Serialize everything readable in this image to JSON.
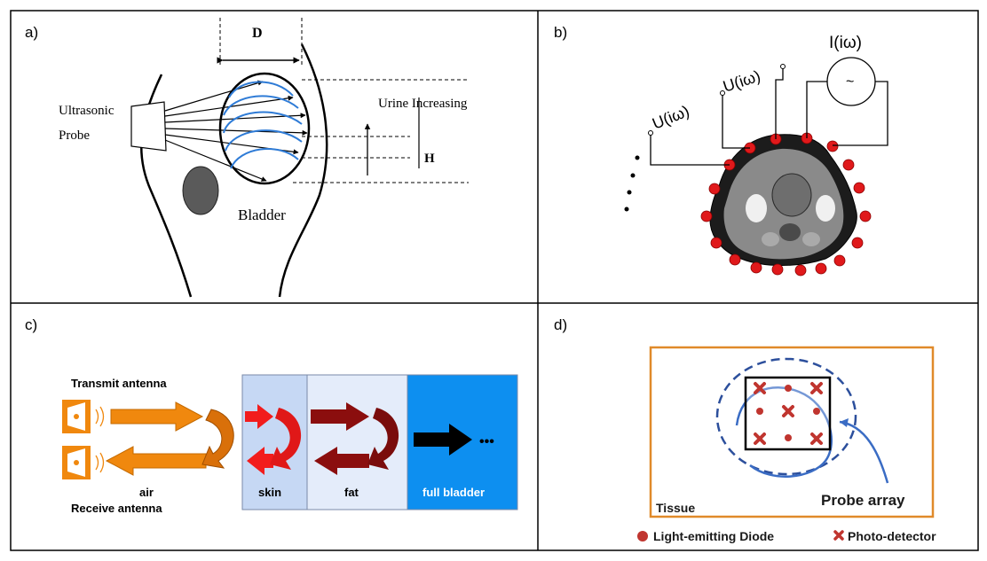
{
  "panels": {
    "a": {
      "label": "a)",
      "dimension_label": "D",
      "probe_label_line1": "Ultrasonic",
      "probe_label_line2": "Probe",
      "urine_label": "Urine Increasing",
      "height_label": "H",
      "bladder_label": "Bladder"
    },
    "b": {
      "label": "b)",
      "current_label": "I(iω)",
      "source_symbol": "~",
      "voltage_label_1": "U(iω)",
      "voltage_label_2": "U(iω)",
      "ellipsis": "..."
    },
    "c": {
      "label": "c)",
      "transmit_label": "Transmit antenna",
      "air_label": "air",
      "receive_label": "Receive antenna",
      "skin_label": "skin",
      "fat_label": "fat",
      "bladder_label": "full bladder",
      "ellipsis": "•••"
    },
    "d": {
      "label": "d)",
      "tissue_label": "Tissue",
      "probe_label": "Probe array",
      "legend_led": "Light-emitting Diode",
      "legend_pd": "Photo-detector"
    }
  },
  "colors": {
    "blue_arc": "#2e7bd6",
    "electrode_red": "#e0191b",
    "antenna_orange": "#f0880e",
    "dark_red": "#8b0e0e",
    "skin_bg": "#c6d8f4",
    "fat_bg": "#e4ecfa",
    "bladder_bg": "#0d8ff0",
    "tissue_border": "#e08a2a",
    "probe_dash": "#2c4f9c",
    "marker_red": "#c0352f"
  }
}
